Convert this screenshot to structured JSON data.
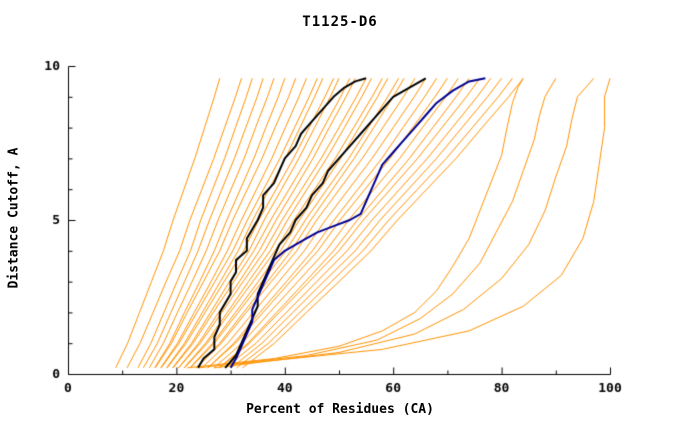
{
  "chart_data": {
    "type": "line",
    "title": "T1125-D6",
    "xlabel": "Percent of Residues (CA)",
    "ylabel": "Distance Cutoff, A",
    "xlim": [
      0,
      100
    ],
    "ylim": [
      0,
      10
    ],
    "x_ticks": [
      0,
      20,
      40,
      60,
      80,
      100
    ],
    "x_minor_ticks": [
      10,
      30,
      50,
      70,
      90
    ],
    "y_ticks": [
      0,
      5,
      10
    ],
    "y_minor_ticks": [
      1,
      2,
      3,
      4,
      6,
      7,
      8,
      9
    ],
    "grid": false,
    "legend": "none",
    "colors": {
      "orange": "#ff9200",
      "black": "#000000",
      "blue": "#000090",
      "axis": "#000000"
    },
    "sample_ys": [
      0.2,
      1,
      2,
      3,
      4,
      5,
      6,
      7,
      8,
      9,
      9.6
    ],
    "series": [
      {
        "name": "orange-01",
        "color": "orange",
        "width": 1,
        "xs": [
          8.8,
          11,
          13.2,
          15.4,
          17.6,
          19.4,
          21.4,
          23.4,
          25.2,
          27,
          28
        ]
      },
      {
        "name": "orange-02",
        "color": "orange",
        "width": 1,
        "xs": [
          10.9,
          13.3,
          15.7,
          18.1,
          20.6,
          22.5,
          24.7,
          26.9,
          28.9,
          30.9,
          32
        ]
      },
      {
        "name": "orange-03",
        "color": "orange",
        "width": 1,
        "xs": [
          12.9,
          15.3,
          17.7,
          20.1,
          22.6,
          24.5,
          26.7,
          28.9,
          30.9,
          32.9,
          34
        ]
      },
      {
        "name": "orange-04",
        "color": "orange",
        "width": 1,
        "xs": [
          13.9,
          16.5,
          19,
          21.5,
          24,
          26.1,
          28.4,
          30.7,
          32.8,
          34.9,
          36
        ]
      },
      {
        "name": "orange-05",
        "color": "orange",
        "width": 1,
        "xs": [
          15,
          17.6,
          20.2,
          22.9,
          25.5,
          27.7,
          30.1,
          32.5,
          34.6,
          36.8,
          38
        ]
      },
      {
        "name": "orange-06",
        "color": "orange",
        "width": 1,
        "xs": [
          16,
          18.8,
          21.5,
          24.3,
          27,
          29.3,
          31.8,
          34.3,
          36.5,
          38.8,
          40
        ]
      },
      {
        "name": "orange-07",
        "color": "orange",
        "width": 1,
        "xs": [
          16.1,
          19.1,
          22,
          25,
          28,
          30.4,
          33.1,
          35.8,
          38.2,
          40.7,
          42
        ]
      },
      {
        "name": "orange-08",
        "color": "orange",
        "width": 1,
        "xs": [
          17.1,
          20.2,
          23.3,
          26.4,
          29.4,
          32,
          34.8,
          37.6,
          40.1,
          42.6,
          44
        ]
      },
      {
        "name": "orange-09",
        "color": "orange",
        "width": 1,
        "xs": [
          17.2,
          20.5,
          23.8,
          27.1,
          30.4,
          33.1,
          36.1,
          39.1,
          41.8,
          44.5,
          46
        ]
      },
      {
        "name": "orange-10",
        "color": "orange",
        "width": 1,
        "xs": [
          18.2,
          21.5,
          24.8,
          28.1,
          31.4,
          34.1,
          37.1,
          40.1,
          42.8,
          45.5,
          47
        ]
      },
      {
        "name": "orange-11",
        "color": "orange",
        "width": 1,
        "xs": [
          18.3,
          21.8,
          25.3,
          28.8,
          32.4,
          35.2,
          38.4,
          41.6,
          44.5,
          47.4,
          49
        ]
      },
      {
        "name": "orange-12",
        "color": "orange",
        "width": 1,
        "xs": [
          19.3,
          22.8,
          26.3,
          29.8,
          33.4,
          36.2,
          39.4,
          42.6,
          45.5,
          48.4,
          50
        ]
      },
      {
        "name": "orange-13",
        "color": "orange",
        "width": 1,
        "xs": [
          19.4,
          23.1,
          26.8,
          30.6,
          34.3,
          37.4,
          40.8,
          44.2,
          47.2,
          50.3,
          52
        ]
      },
      {
        "name": "orange-14",
        "color": "orange",
        "width": 1,
        "xs": [
          20.4,
          24.1,
          27.8,
          31.6,
          35.3,
          38.4,
          41.8,
          45.2,
          48.2,
          51.3,
          53
        ]
      },
      {
        "name": "orange-15",
        "color": "orange",
        "width": 1,
        "xs": [
          20.4,
          24.4,
          28.4,
          32.3,
          36.3,
          39.5,
          43.1,
          46.7,
          50,
          53.2,
          55
        ]
      },
      {
        "name": "orange-16",
        "color": "orange",
        "width": 1,
        "xs": [
          21.4,
          25.4,
          29.4,
          33.3,
          37.3,
          40.5,
          44.1,
          47.7,
          51,
          54.2,
          56
        ]
      },
      {
        "name": "orange-17",
        "color": "orange",
        "width": 1,
        "xs": [
          21.5,
          25.7,
          29.9,
          34.1,
          38.2,
          41.7,
          45.5,
          49.3,
          52.7,
          56.1,
          58
        ]
      },
      {
        "name": "orange-18",
        "color": "orange",
        "width": 1,
        "xs": [
          22.5,
          26.7,
          30.9,
          35.1,
          39.2,
          42.7,
          46.5,
          50.3,
          53.7,
          57.1,
          59
        ]
      },
      {
        "name": "orange-19",
        "color": "orange",
        "width": 1,
        "xs": [
          22.6,
          27,
          31.4,
          35.8,
          40.2,
          43.8,
          47.8,
          51.8,
          55.4,
          59,
          61
        ]
      },
      {
        "name": "orange-20",
        "color": "orange",
        "width": 1,
        "xs": [
          23.6,
          28,
          32.4,
          36.8,
          41.2,
          44.8,
          48.8,
          52.8,
          56.4,
          60,
          62
        ]
      },
      {
        "name": "orange-21",
        "color": "orange",
        "width": 1,
        "xs": [
          23.7,
          28.3,
          32.9,
          37.5,
          42.2,
          45.9,
          50.1,
          54.3,
          58.1,
          61.9,
          64
        ]
      },
      {
        "name": "orange-22",
        "color": "orange",
        "width": 1,
        "xs": [
          24.7,
          29.5,
          34.2,
          38.9,
          43.6,
          47.5,
          51.8,
          56.1,
          60,
          63.9,
          66
        ]
      },
      {
        "name": "orange-23",
        "color": "orange",
        "width": 1,
        "xs": [
          25.8,
          30.6,
          35.4,
          40.3,
          45.1,
          49.1,
          53.5,
          57.9,
          61.8,
          65.8,
          68
        ]
      },
      {
        "name": "orange-24",
        "color": "orange",
        "width": 1,
        "xs": [
          25.8,
          30.9,
          36,
          41,
          46.1,
          50.2,
          54.8,
          59.4,
          63.6,
          67.7,
          70
        ]
      },
      {
        "name": "orange-25",
        "color": "orange",
        "width": 1,
        "xs": [
          26.9,
          32.1,
          37.2,
          42.4,
          47.6,
          51.8,
          56.5,
          61.2,
          65.4,
          69.7,
          72
        ]
      },
      {
        "name": "orange-26",
        "color": "orange",
        "width": 1,
        "xs": [
          27.9,
          33.2,
          38.5,
          43.8,
          49,
          53.4,
          58.2,
          63,
          67.3,
          71.6,
          74
        ]
      },
      {
        "name": "orange-27",
        "color": "orange",
        "width": 1,
        "xs": [
          28,
          33.5,
          39,
          44.5,
          50,
          54.5,
          59.5,
          64.5,
          69,
          73.5,
          76
        ]
      },
      {
        "name": "orange-28",
        "color": "orange",
        "width": 1,
        "xs": [
          29,
          34.7,
          40.3,
          45.9,
          51.5,
          56.1,
          61.2,
          66.3,
          70.9,
          75.5,
          78
        ]
      },
      {
        "name": "orange-29",
        "color": "orange",
        "width": 1,
        "xs": [
          30.1,
          35.8,
          41.5,
          47.2,
          53,
          57.6,
          62.8,
          68,
          72.7,
          77.4,
          80
        ]
      },
      {
        "name": "orange-30",
        "color": "orange",
        "width": 1,
        "xs": [
          31.1,
          37,
          42.8,
          48.6,
          54.4,
          59.2,
          64.5,
          69.8,
          74.6,
          79.4,
          82
        ]
      },
      {
        "name": "orange-31",
        "color": "orange",
        "width": 1,
        "xs": [
          32.2,
          38.1,
          44,
          50,
          55.9,
          60.8,
          66.2,
          71.6,
          76.4,
          81.3,
          84
        ]
      },
      {
        "name": "orange-32",
        "color": "orange",
        "width": 1,
        "points": [
          [
            22,
            0.2
          ],
          [
            38,
            0.5
          ],
          [
            50,
            0.9
          ],
          [
            58,
            1.4
          ],
          [
            64,
            2
          ],
          [
            68,
            2.7
          ],
          [
            71,
            3.5
          ],
          [
            74,
            4.4
          ],
          [
            76,
            5.3
          ],
          [
            78,
            6.2
          ],
          [
            80,
            7.1
          ],
          [
            81,
            8
          ],
          [
            82,
            8.8
          ],
          [
            83,
            9.3
          ],
          [
            84,
            9.6
          ]
        ]
      },
      {
        "name": "orange-33",
        "color": "orange",
        "width": 1,
        "points": [
          [
            24,
            0.2
          ],
          [
            44,
            0.6
          ],
          [
            57,
            1.1
          ],
          [
            65,
            1.8
          ],
          [
            71,
            2.6
          ],
          [
            76,
            3.6
          ],
          [
            79,
            4.6
          ],
          [
            82,
            5.6
          ],
          [
            84,
            6.6
          ],
          [
            86,
            7.6
          ],
          [
            87,
            8.4
          ],
          [
            88,
            9
          ],
          [
            90,
            9.6
          ]
        ]
      },
      {
        "name": "orange-34",
        "color": "orange",
        "width": 1,
        "points": [
          [
            27,
            0.2
          ],
          [
            50,
            0.7
          ],
          [
            64,
            1.3
          ],
          [
            73,
            2.1
          ],
          [
            80,
            3.1
          ],
          [
            85,
            4.2
          ],
          [
            88,
            5.3
          ],
          [
            90,
            6.4
          ],
          [
            92,
            7.4
          ],
          [
            93,
            8.3
          ],
          [
            94,
            9
          ],
          [
            97,
            9.6
          ]
        ]
      },
      {
        "name": "orange-35",
        "color": "orange",
        "width": 1,
        "points": [
          [
            30,
            0.3
          ],
          [
            58,
            0.8
          ],
          [
            74,
            1.4
          ],
          [
            84,
            2.2
          ],
          [
            91,
            3.2
          ],
          [
            95,
            4.4
          ],
          [
            97,
            5.6
          ],
          [
            98,
            6.8
          ],
          [
            99,
            8
          ],
          [
            99,
            9
          ],
          [
            100,
            9.6
          ]
        ]
      },
      {
        "name": "black-1",
        "color": "black",
        "width": 2,
        "points": [
          [
            24,
            0.2
          ],
          [
            25,
            0.5
          ],
          [
            27,
            0.8
          ],
          [
            27,
            1.2
          ],
          [
            28,
            1.6
          ],
          [
            28,
            2
          ],
          [
            29,
            2.3
          ],
          [
            30,
            2.6
          ],
          [
            30,
            3
          ],
          [
            31,
            3.3
          ],
          [
            31,
            3.7
          ],
          [
            33,
            4
          ],
          [
            33,
            4.4
          ],
          [
            34,
            4.7
          ],
          [
            35,
            5
          ],
          [
            36,
            5.4
          ],
          [
            36,
            5.8
          ],
          [
            38,
            6.2
          ],
          [
            39,
            6.6
          ],
          [
            40,
            7
          ],
          [
            42,
            7.4
          ],
          [
            43,
            7.8
          ],
          [
            45,
            8.2
          ],
          [
            47,
            8.6
          ],
          [
            49,
            9
          ],
          [
            51,
            9.3
          ],
          [
            53,
            9.5
          ],
          [
            55,
            9.6
          ]
        ]
      },
      {
        "name": "black-2",
        "color": "black",
        "width": 2,
        "points": [
          [
            29,
            0.2
          ],
          [
            31,
            0.6
          ],
          [
            32,
            1
          ],
          [
            33,
            1.4
          ],
          [
            34,
            1.8
          ],
          [
            35,
            2.2
          ],
          [
            35,
            2.6
          ],
          [
            36,
            3
          ],
          [
            37,
            3.4
          ],
          [
            38,
            3.8
          ],
          [
            39,
            4.2
          ],
          [
            41,
            4.6
          ],
          [
            42,
            5
          ],
          [
            44,
            5.4
          ],
          [
            45,
            5.8
          ],
          [
            47,
            6.2
          ],
          [
            48,
            6.6
          ],
          [
            50,
            7
          ],
          [
            52,
            7.4
          ],
          [
            54,
            7.8
          ],
          [
            56,
            8.2
          ],
          [
            58,
            8.6
          ],
          [
            60,
            9
          ],
          [
            63,
            9.3
          ],
          [
            66,
            9.6
          ]
        ]
      },
      {
        "name": "blue-1",
        "color": "blue",
        "width": 2,
        "points": [
          [
            30,
            0.2
          ],
          [
            31,
            0.5
          ],
          [
            32,
            0.9
          ],
          [
            33,
            1.3
          ],
          [
            34,
            1.7
          ],
          [
            34,
            2.1
          ],
          [
            35,
            2.5
          ],
          [
            36,
            2.9
          ],
          [
            37,
            3.3
          ],
          [
            38,
            3.7
          ],
          [
            40,
            4
          ],
          [
            42,
            4.2
          ],
          [
            44,
            4.4
          ],
          [
            46,
            4.6
          ],
          [
            49,
            4.8
          ],
          [
            52,
            5
          ],
          [
            54,
            5.2
          ],
          [
            55,
            5.6
          ],
          [
            56,
            6
          ],
          [
            57,
            6.4
          ],
          [
            58,
            6.8
          ],
          [
            60,
            7.2
          ],
          [
            62,
            7.6
          ],
          [
            64,
            8
          ],
          [
            66,
            8.4
          ],
          [
            68,
            8.8
          ],
          [
            71,
            9.2
          ],
          [
            74,
            9.5
          ],
          [
            77,
            9.6
          ]
        ]
      }
    ]
  }
}
